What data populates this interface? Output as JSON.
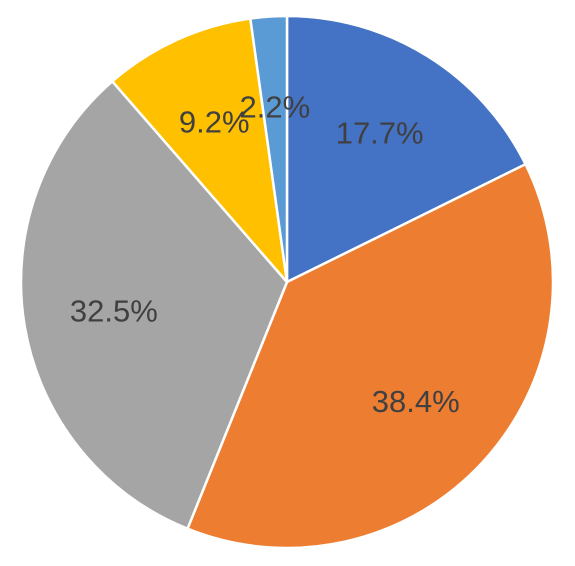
{
  "chart_data": {
    "type": "pie",
    "title": "",
    "slices": [
      {
        "value": 17.7,
        "label": "17.7%",
        "color": "#4472C4"
      },
      {
        "value": 38.4,
        "label": "38.4%",
        "color": "#ED7D31"
      },
      {
        "value": 32.5,
        "label": "32.5%",
        "color": "#A5A5A5"
      },
      {
        "value": 9.2,
        "label": "9.2%",
        "color": "#FFC000"
      },
      {
        "value": 2.2,
        "label": "2.2%",
        "color": "#5B9BD5"
      }
    ],
    "start_angle_deg": 0,
    "direction": "clockwise",
    "legend": "none"
  }
}
